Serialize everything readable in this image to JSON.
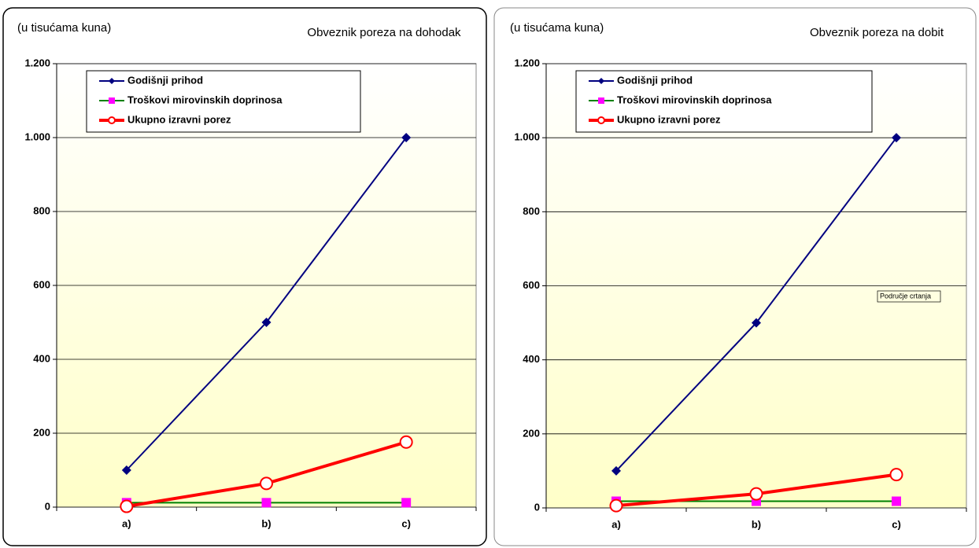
{
  "chart_data": [
    {
      "type": "line",
      "title": "Obveznik poreza na dohodak",
      "unit_label": "(u tisućama kuna)",
      "categories": [
        "a)",
        "b)",
        "c)"
      ],
      "ylim": [
        0,
        1200
      ],
      "yticks": [
        0,
        200,
        400,
        600,
        800,
        {
          "value": 1000,
          "label": "1.000"
        },
        {
          "value": 1200,
          "label": "1.200"
        }
      ],
      "grid": true,
      "legend": "top-left",
      "series": [
        {
          "name": "Godišnji prihod",
          "color": "#000080",
          "marker": "diamond",
          "marker_color": "#000080",
          "values": [
            100,
            500,
            1000
          ]
        },
        {
          "name": "Troškovi mirovinskih  doprinosa",
          "color": "#008000",
          "marker": "square",
          "marker_color": "#ff00ff",
          "values": [
            12,
            12,
            12
          ]
        },
        {
          "name": "Ukupno izravni porez",
          "color": "#ff0000",
          "marker": "circle",
          "marker_color": "#ffffff",
          "values": [
            2,
            64,
            176
          ]
        }
      ]
    },
    {
      "type": "line",
      "title": "Obveznik poreza na dobit",
      "unit_label": "(u tisućama kuna)",
      "categories": [
        "a)",
        "b)",
        "c)"
      ],
      "ylim": [
        0,
        1200
      ],
      "yticks": [
        0,
        200,
        400,
        600,
        800,
        {
          "value": 1000,
          "label": "1.000"
        },
        {
          "value": 1200,
          "label": "1.200"
        }
      ],
      "grid": true,
      "legend": "top-left",
      "tooltip": "Područje crtanja",
      "series": [
        {
          "name": "Godišnji prihod",
          "color": "#000080",
          "marker": "diamond",
          "marker_color": "#000080",
          "values": [
            100,
            500,
            1000
          ]
        },
        {
          "name": "Troškovi mirovinskih  doprinosa",
          "color": "#008000",
          "marker": "square",
          "marker_color": "#ff00ff",
          "values": [
            18,
            18,
            18
          ]
        },
        {
          "name": "Ukupno izravni porez",
          "color": "#ff0000",
          "marker": "circle",
          "marker_color": "#ffffff",
          "values": [
            6,
            38,
            90
          ]
        }
      ]
    }
  ]
}
